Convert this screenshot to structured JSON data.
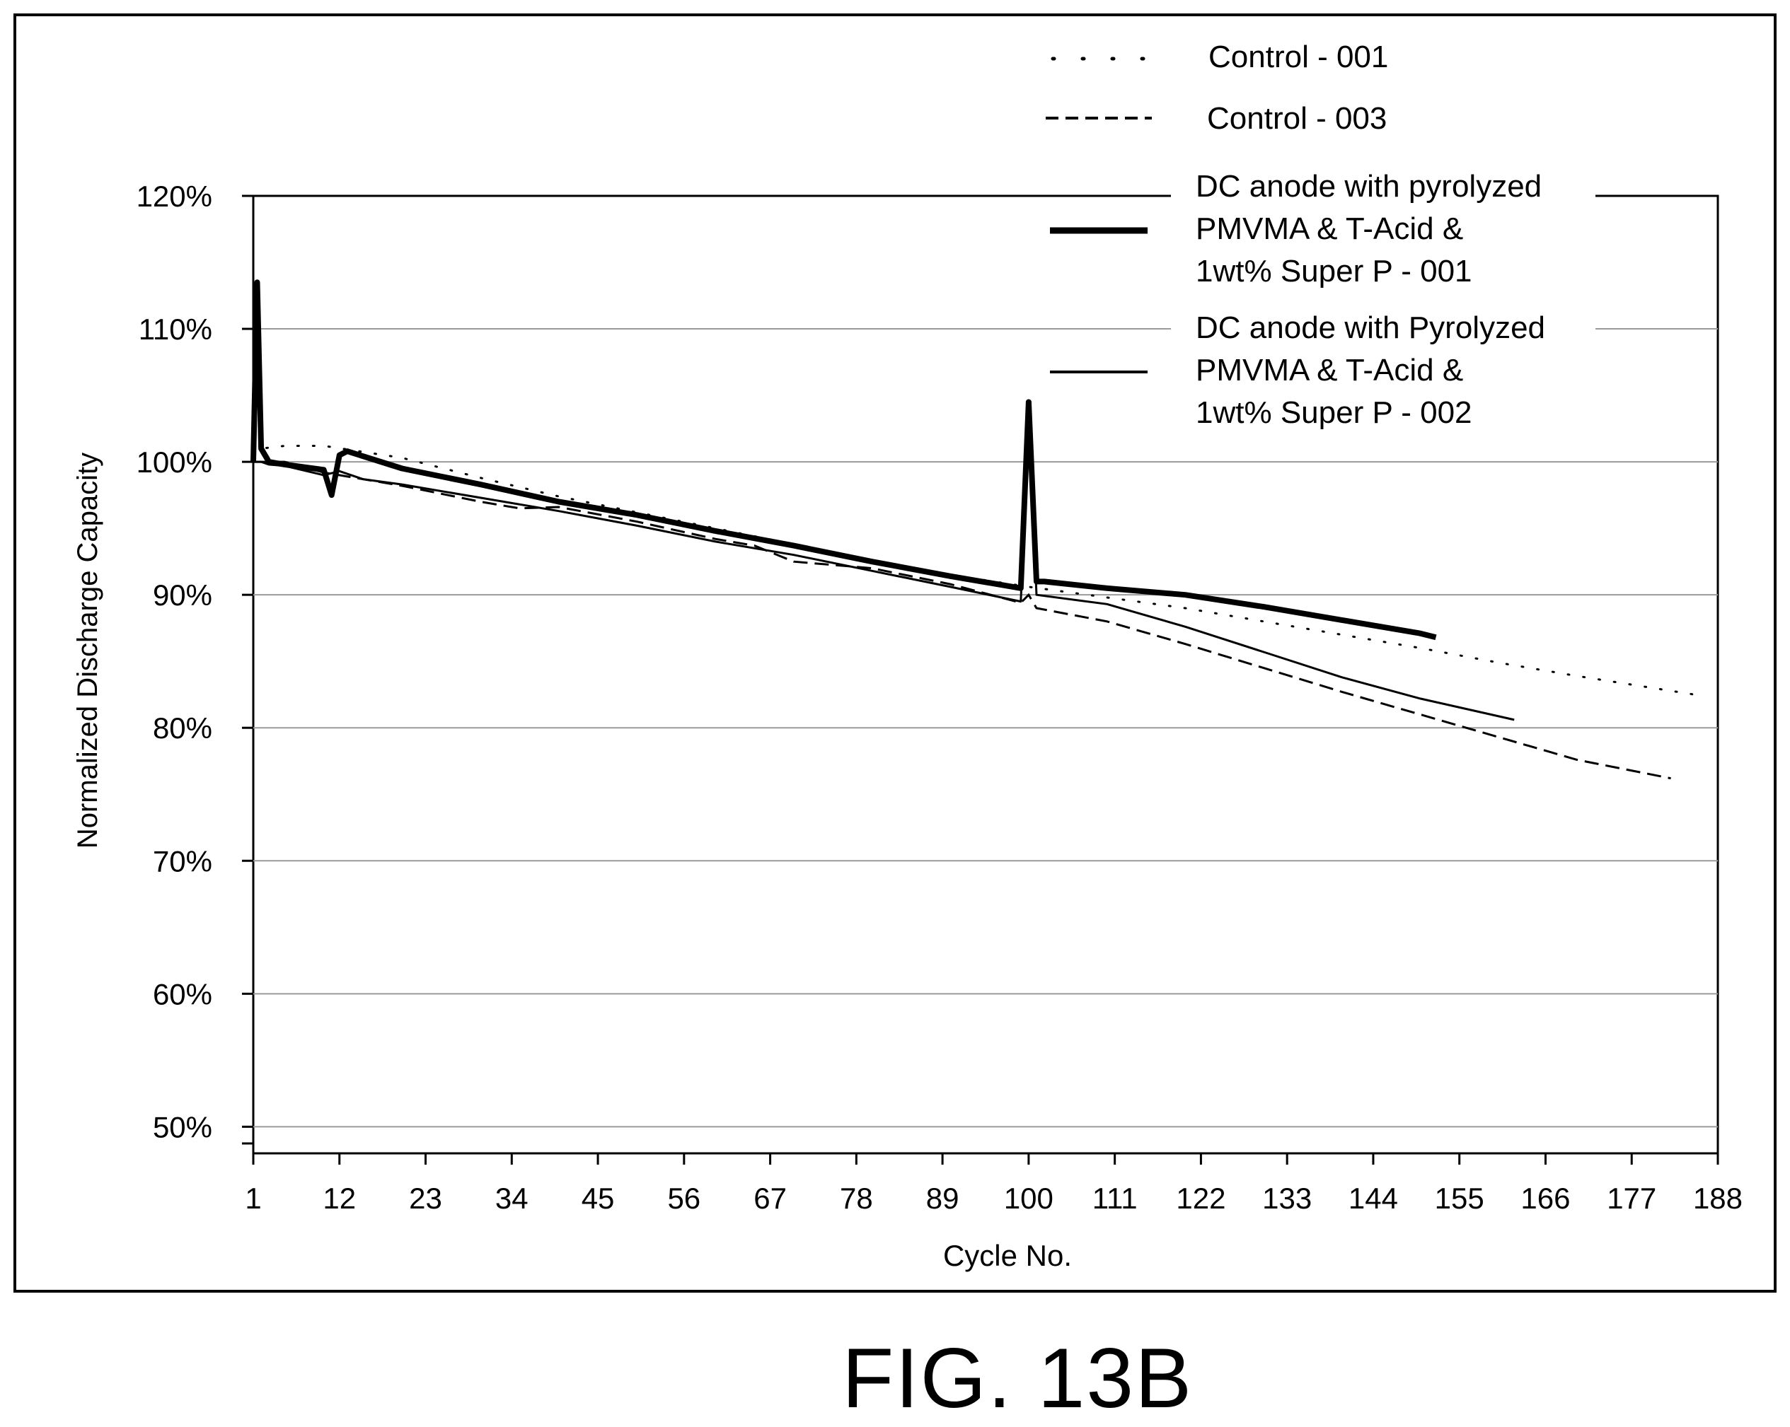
{
  "figure_label": "FIG. 13B",
  "chart_data": {
    "type": "line",
    "title": "",
    "xlabel": "Cycle No.",
    "ylabel": "Normalized Discharge Capacity",
    "xlim": [
      1,
      188
    ],
    "ylim": [
      0.48,
      1.2
    ],
    "x_ticks": [
      1,
      12,
      23,
      34,
      45,
      56,
      67,
      78,
      89,
      100,
      111,
      122,
      133,
      144,
      155,
      166,
      177,
      188
    ],
    "y_ticks": [
      {
        "value": 1.2,
        "label": "120%"
      },
      {
        "value": 1.1,
        "label": "110%"
      },
      {
        "value": 1.0,
        "label": "100%"
      },
      {
        "value": 0.9,
        "label": "90%"
      },
      {
        "value": 0.8,
        "label": "80%"
      },
      {
        "value": 0.7,
        "label": "70%"
      },
      {
        "value": 0.6,
        "label": "60%"
      },
      {
        "value": 0.5,
        "label": "50%"
      }
    ],
    "grid": true,
    "legend_position": "top-right",
    "series": [
      {
        "name": "Control - 001",
        "style": "dotted",
        "x": [
          1,
          2,
          5,
          10,
          20,
          30,
          40,
          50,
          60,
          70,
          80,
          90,
          100,
          110,
          120,
          130,
          140,
          150,
          160,
          170,
          185
        ],
        "y": [
          1.005,
          1.01,
          1.012,
          1.012,
          1.003,
          0.988,
          0.974,
          0.962,
          0.95,
          0.938,
          0.926,
          0.915,
          0.906,
          0.898,
          0.89,
          0.88,
          0.87,
          0.86,
          0.849,
          0.839,
          0.825
        ]
      },
      {
        "name": "Control - 003",
        "style": "dashed",
        "x": [
          1,
          2,
          5,
          10,
          20,
          30,
          35,
          40,
          50,
          60,
          65,
          70,
          80,
          90,
          99,
          100,
          101,
          110,
          120,
          130,
          140,
          150,
          160,
          170,
          182
        ],
        "y": [
          1.0,
          1.0,
          1.0,
          0.992,
          0.982,
          0.97,
          0.965,
          0.966,
          0.955,
          0.942,
          0.937,
          0.925,
          0.92,
          0.908,
          0.894,
          0.9,
          0.89,
          0.88,
          0.863,
          0.845,
          0.827,
          0.81,
          0.793,
          0.776,
          0.762
        ]
      },
      {
        "name": "DC anode with pyrolyzed PMVMA & T-Acid & 1wt% Super P - 001",
        "style": "thick",
        "x": [
          1,
          1.5,
          2,
          3,
          5,
          10,
          11,
          12,
          13,
          20,
          30,
          40,
          50,
          60,
          70,
          80,
          90,
          99,
          100,
          101,
          102,
          110,
          120,
          130,
          140,
          150,
          152
        ],
        "y": [
          1.0,
          1.135,
          1.01,
          1.0,
          0.998,
          0.994,
          0.975,
          1.005,
          1.008,
          0.995,
          0.983,
          0.97,
          0.96,
          0.948,
          0.937,
          0.925,
          0.914,
          0.905,
          1.045,
          0.91,
          0.91,
          0.905,
          0.9,
          0.891,
          0.881,
          0.871,
          0.868
        ]
      },
      {
        "name": "DC anode with Pyrolyzed PMVMA & T-Acid & 1wt% Super P - 002",
        "style": "solid",
        "x": [
          1,
          2,
          3,
          5,
          10,
          12,
          15,
          20,
          30,
          40,
          50,
          60,
          70,
          80,
          90,
          99,
          100,
          101,
          110,
          120,
          130,
          140,
          150,
          162
        ],
        "y": [
          1.0,
          1.0,
          0.998,
          0.997,
          0.99,
          0.993,
          0.987,
          0.983,
          0.973,
          0.963,
          0.952,
          0.94,
          0.93,
          0.918,
          0.906,
          0.895,
          1.04,
          0.9,
          0.893,
          0.876,
          0.857,
          0.838,
          0.822,
          0.806
        ]
      }
    ]
  }
}
